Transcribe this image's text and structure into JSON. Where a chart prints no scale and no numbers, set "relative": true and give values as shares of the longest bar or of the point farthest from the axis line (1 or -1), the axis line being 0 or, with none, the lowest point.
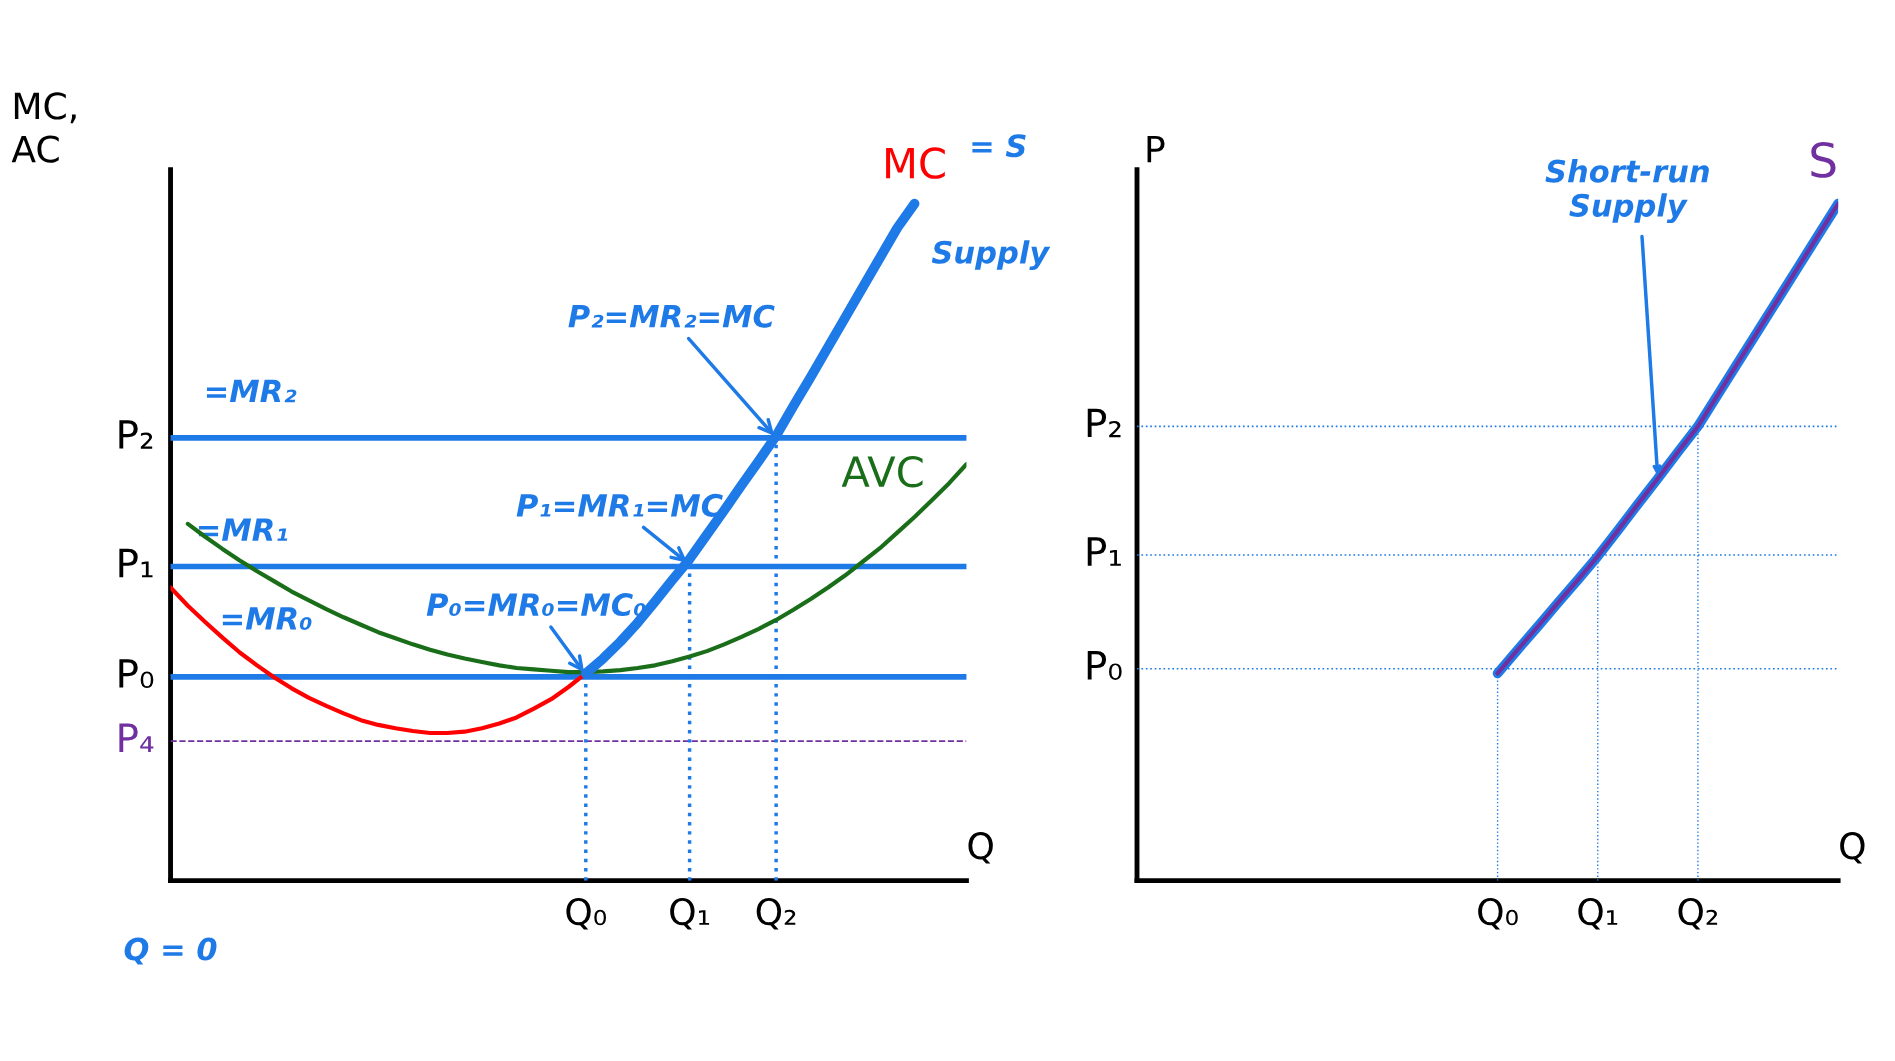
{
  "chart_data": [
    {
      "type": "line",
      "relative": true,
      "ylabel": "MC,\nAC",
      "xlabel": "Q",
      "marker": "none",
      "line_style": "solid",
      "categories": [
        null,
        null,
        null,
        null,
        null,
        null,
        null,
        null,
        null,
        null,
        null,
        null,
        null,
        null,
        null,
        null,
        null,
        null,
        null,
        null,
        null,
        null,
        null,
        null,
        "Q₀",
        null,
        null,
        null,
        null,
        null,
        "Q₁",
        null,
        null,
        null,
        null,
        "Q₂",
        null,
        null,
        null,
        null,
        null,
        null,
        null,
        null,
        null,
        null,
        null
      ],
      "series": [
        {
          "name": "MC",
          "color": "#ff0000",
          "values": [
            0.433,
            0.406,
            0.382,
            0.359,
            0.337,
            0.318,
            0.3,
            0.284,
            0.27,
            0.258,
            0.247,
            0.237,
            0.23,
            0.225,
            0.221,
            0.218,
            0.218,
            0.22,
            0.225,
            0.232,
            0.241,
            0.254,
            0.268,
            0.286,
            0.306,
            null,
            null,
            null,
            null,
            null,
            null,
            null,
            null,
            null,
            null,
            null,
            null,
            null,
            null,
            null,
            null,
            null,
            null,
            null,
            null,
            null,
            null
          ]
        },
        {
          "name": "AVC",
          "color": "#1a6e1a",
          "values": [
            null,
            0.527,
            0.508,
            0.49,
            0.473,
            0.457,
            0.442,
            0.427,
            0.414,
            0.401,
            0.389,
            0.378,
            0.367,
            0.358,
            0.349,
            0.341,
            0.334,
            0.328,
            0.323,
            0.318,
            0.314,
            0.312,
            0.31,
            0.308,
            0.308,
            0.309,
            0.311,
            0.314,
            0.318,
            0.324,
            0.331,
            0.339,
            0.349,
            0.36,
            0.372,
            0.385,
            0.4,
            0.416,
            0.433,
            0.451,
            0.471,
            0.491,
            0.514,
            0.537,
            0.562,
            0.587,
            0.615
          ]
        },
        {
          "color": "#1e7ae6",
          "values": [
            null,
            null,
            null,
            null,
            null,
            null,
            null,
            null,
            null,
            null,
            null,
            null,
            null,
            null,
            null,
            null,
            null,
            null,
            null,
            null,
            null,
            null,
            null,
            null,
            0.306,
            0.328,
            0.353,
            0.381,
            0.412,
            0.444,
            0.475,
            0.511,
            0.547,
            0.584,
            0.62,
            0.657,
            0.701,
            0.744,
            0.788,
            0.832,
            0.876,
            0.92,
            0.964,
            1.0,
            null,
            null,
            null
          ]
        }
      ],
      "ref_lines": [
        {
          "axis": "y",
          "value": 0.301,
          "label": "P₀",
          "color": "#1e7ae6",
          "line_style": "solid"
        },
        {
          "axis": "y",
          "value": 0.464,
          "label": "P₁",
          "color": "#1e7ae6",
          "line_style": "solid"
        },
        {
          "axis": "y",
          "value": 0.654,
          "label": "P₂",
          "color": "#1e7ae6",
          "line_style": "solid"
        },
        {
          "axis": "y",
          "value": 0.206,
          "label": "P₄",
          "color": "#7030a0",
          "line_style": "dashed"
        },
        {
          "axis": "x",
          "value": "Q₀",
          "color": "#1e7ae6",
          "line_style": "dotted"
        },
        {
          "axis": "x",
          "value": "Q₁",
          "color": "#1e7ae6",
          "line_style": "dotted"
        },
        {
          "axis": "x",
          "value": "Q₂",
          "color": "#1e7ae6",
          "line_style": "dotted"
        }
      ],
      "annotations": [
        "=MR₀",
        "=MR₁",
        "=MR₂",
        {
          "text": "P₂=MR₂=MC",
          "x": "Q₂",
          "y": 0.654
        },
        {
          "text": "P₁=MR₁=MC",
          "x": "Q₁",
          "y": 0.467
        },
        {
          "text": "P₀=MR₀=MC₀",
          "x": "Q₀",
          "y": 0.304
        },
        "= S",
        "Supply",
        "Q = 0"
      ]
    },
    {
      "type": "line",
      "relative": true,
      "ylabel": "P",
      "xlabel": "Q",
      "marker": "none",
      "line_style": "solid",
      "categories": [
        null,
        null,
        null,
        null,
        null,
        null,
        null,
        null,
        null,
        null,
        null,
        null,
        null,
        null,
        null,
        null,
        null,
        null,
        "Q₀",
        null,
        null,
        null,
        null,
        "Q₁",
        null,
        null,
        null,
        null,
        "Q₂",
        null,
        null,
        null,
        null,
        null,
        null,
        null
      ],
      "series": [
        {
          "name": "S",
          "color": "#7030a0",
          "values": [
            null,
            null,
            null,
            null,
            null,
            null,
            null,
            null,
            null,
            null,
            null,
            null,
            null,
            null,
            null,
            null,
            null,
            null,
            0.306,
            0.341,
            0.375,
            0.41,
            0.444,
            0.479,
            0.517,
            0.556,
            0.594,
            0.633,
            0.671,
            0.718,
            0.765,
            0.812,
            0.859,
            0.906,
            0.953,
            1.0
          ]
        },
        {
          "color": "#1e7ae6",
          "values": [
            null,
            null,
            null,
            null,
            null,
            null,
            null,
            null,
            null,
            null,
            null,
            null,
            null,
            null,
            null,
            null,
            null,
            null,
            0.306,
            0.341,
            0.375,
            0.41,
            0.444,
            0.479,
            0.517,
            0.556,
            0.594,
            0.633,
            0.671,
            0.718,
            0.765,
            0.812,
            0.859,
            0.906,
            0.953,
            1.0
          ]
        }
      ],
      "ref_lines": [
        {
          "axis": "y",
          "value": 0.313,
          "label": "P₀",
          "color": "#1e7ae6",
          "line_style": "dotted"
        },
        {
          "axis": "y",
          "value": 0.481,
          "label": "P₁",
          "color": "#1e7ae6",
          "line_style": "dotted"
        },
        {
          "axis": "y",
          "value": 0.671,
          "label": "P₂",
          "color": "#1e7ae6",
          "line_style": "dotted"
        },
        {
          "axis": "x",
          "value": "Q₀",
          "color": "#1e7ae6",
          "line_style": "dotted"
        },
        {
          "axis": "x",
          "value": "Q₁",
          "color": "#1e7ae6",
          "line_style": "dotted"
        },
        {
          "axis": "x",
          "value": "Q₂",
          "color": "#1e7ae6",
          "line_style": "dotted"
        }
      ],
      "annotations": [
        "Short-run\nSupply"
      ]
    }
  ]
}
